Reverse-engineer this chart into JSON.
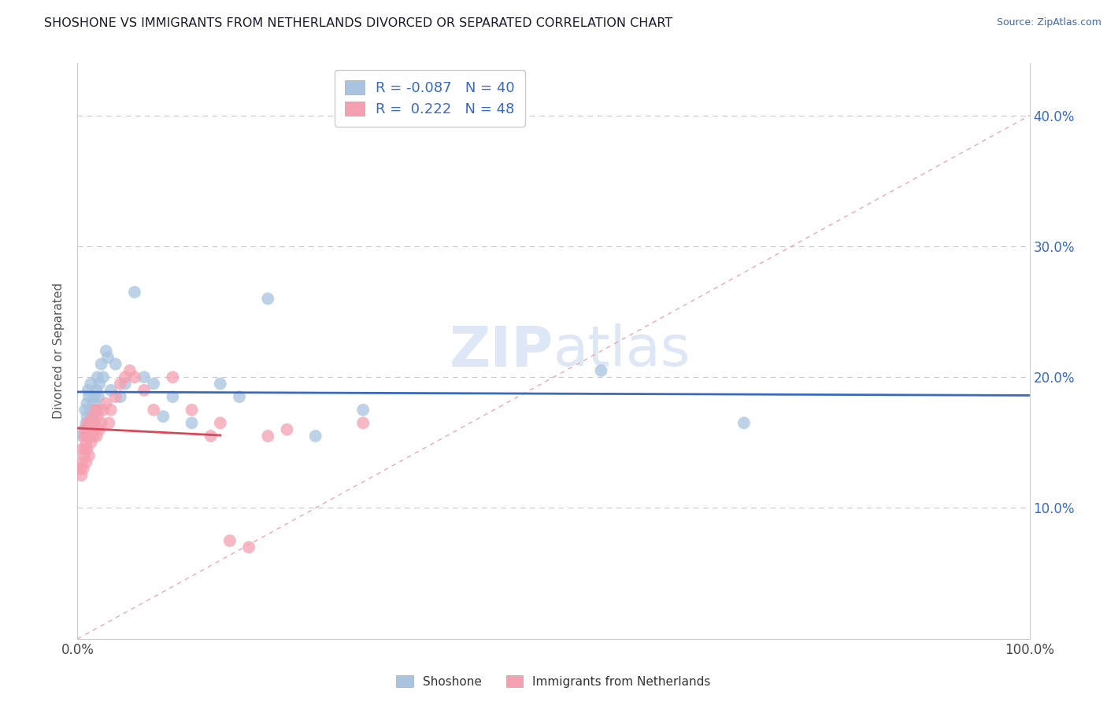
{
  "title": "SHOSHONE VS IMMIGRANTS FROM NETHERLANDS DIVORCED OR SEPARATED CORRELATION CHART",
  "source": "Source: ZipAtlas.com",
  "ylabel": "Divorced or Separated",
  "xlim": [
    0.0,
    1.0
  ],
  "ylim": [
    0.0,
    0.44
  ],
  "yticks": [
    0.1,
    0.2,
    0.3,
    0.4
  ],
  "ytick_labels": [
    "10.0%",
    "20.0%",
    "30.0%",
    "40.0%"
  ],
  "xticks": [
    0.0,
    0.25,
    0.5,
    0.75,
    1.0
  ],
  "xtick_labels": [
    "0.0%",
    "",
    "",
    "",
    "100.0%"
  ],
  "legend_R1": "-0.087",
  "legend_N1": "40",
  "legend_R2": "0.222",
  "legend_N2": "48",
  "color_blue": "#a8c4e0",
  "color_pink": "#f4a0b0",
  "line_blue": "#3a6abf",
  "line_pink": "#d9485a",
  "diag_color": "#e8a0a8",
  "watermark_color": "#c8d8f0",
  "shoshone_x": [
    0.005,
    0.007,
    0.008,
    0.009,
    0.01,
    0.01,
    0.011,
    0.012,
    0.013,
    0.014,
    0.015,
    0.016,
    0.017,
    0.018,
    0.019,
    0.02,
    0.021,
    0.022,
    0.023,
    0.025,
    0.027,
    0.03,
    0.032,
    0.035,
    0.04,
    0.045,
    0.05,
    0.06,
    0.07,
    0.08,
    0.09,
    0.1,
    0.12,
    0.15,
    0.17,
    0.2,
    0.25,
    0.3,
    0.55,
    0.7
  ],
  "shoshone_y": [
    0.155,
    0.16,
    0.175,
    0.165,
    0.17,
    0.18,
    0.19,
    0.185,
    0.175,
    0.195,
    0.17,
    0.165,
    0.18,
    0.185,
    0.175,
    0.19,
    0.2,
    0.185,
    0.195,
    0.21,
    0.2,
    0.22,
    0.215,
    0.19,
    0.21,
    0.185,
    0.195,
    0.265,
    0.2,
    0.195,
    0.17,
    0.185,
    0.165,
    0.195,
    0.185,
    0.26,
    0.155,
    0.175,
    0.205,
    0.165
  ],
  "netherlands_x": [
    0.003,
    0.004,
    0.005,
    0.005,
    0.006,
    0.007,
    0.007,
    0.008,
    0.008,
    0.009,
    0.009,
    0.01,
    0.01,
    0.011,
    0.012,
    0.013,
    0.013,
    0.014,
    0.015,
    0.016,
    0.017,
    0.018,
    0.019,
    0.02,
    0.021,
    0.022,
    0.023,
    0.025,
    0.027,
    0.03,
    0.033,
    0.035,
    0.04,
    0.045,
    0.05,
    0.055,
    0.06,
    0.07,
    0.08,
    0.1,
    0.12,
    0.14,
    0.15,
    0.16,
    0.18,
    0.2,
    0.22,
    0.3
  ],
  "netherlands_y": [
    0.13,
    0.125,
    0.135,
    0.145,
    0.13,
    0.14,
    0.155,
    0.145,
    0.16,
    0.135,
    0.15,
    0.145,
    0.155,
    0.165,
    0.14,
    0.155,
    0.165,
    0.15,
    0.16,
    0.17,
    0.155,
    0.165,
    0.175,
    0.155,
    0.17,
    0.175,
    0.16,
    0.165,
    0.175,
    0.18,
    0.165,
    0.175,
    0.185,
    0.195,
    0.2,
    0.205,
    0.2,
    0.19,
    0.175,
    0.2,
    0.175,
    0.155,
    0.165,
    0.075,
    0.07,
    0.155,
    0.16,
    0.165
  ]
}
